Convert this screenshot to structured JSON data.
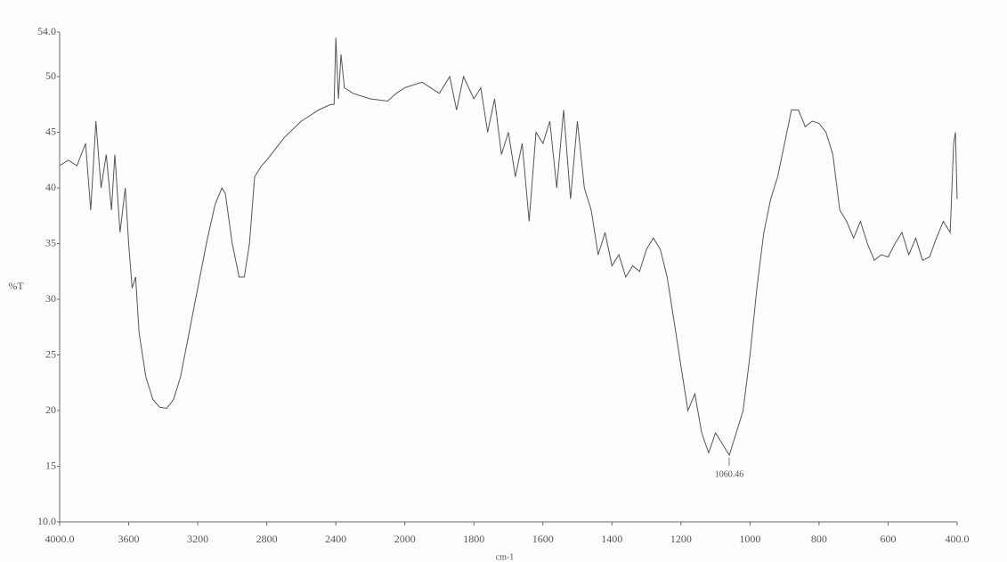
{
  "chart_data": {
    "type": "line",
    "ylabel": "%T",
    "xlabel": "cm-1",
    "xlim": [
      4000,
      400
    ],
    "xticks": [
      {
        "value": 4000,
        "label": "4000.0"
      },
      3600,
      3200,
      2800,
      2400,
      2000,
      1800,
      1600,
      1400,
      1200,
      1000,
      800,
      600,
      {
        "value": 400,
        "label": "400.0"
      }
    ],
    "ylim": [
      10,
      54
    ],
    "yticks": [
      {
        "value": 10,
        "label": "10.0"
      },
      15,
      20,
      25,
      30,
      35,
      40,
      45,
      50,
      {
        "value": 54,
        "label": "54.0"
      }
    ],
    "annotations": [
      {
        "label": "1060.46",
        "x": 1060.46,
        "y": 16
      }
    ],
    "series": [
      {
        "color": "#555555",
        "x": [
          4000,
          3950,
          3900,
          3850,
          3820,
          3790,
          3760,
          3730,
          3700,
          3680,
          3650,
          3620,
          3600,
          3580,
          3560,
          3540,
          3520,
          3500,
          3460,
          3420,
          3380,
          3340,
          3300,
          3250,
          3200,
          3150,
          3100,
          3060,
          3040,
          3000,
          2960,
          2930,
          2900,
          2870,
          2830,
          2800,
          2700,
          2600,
          2500,
          2430,
          2410,
          2400,
          2385,
          2370,
          2350,
          2300,
          2200,
          2100,
          2050,
          2000,
          1950,
          1900,
          1870,
          1850,
          1830,
          1800,
          1780,
          1760,
          1740,
          1720,
          1700,
          1680,
          1660,
          1640,
          1620,
          1600,
          1580,
          1560,
          1540,
          1520,
          1500,
          1480,
          1460,
          1440,
          1420,
          1400,
          1380,
          1360,
          1340,
          1320,
          1300,
          1280,
          1260,
          1240,
          1220,
          1200,
          1180,
          1160,
          1140,
          1120,
          1100,
          1080,
          1060,
          1040,
          1020,
          1000,
          980,
          960,
          940,
          920,
          900,
          880,
          860,
          840,
          820,
          800,
          780,
          760,
          740,
          720,
          700,
          680,
          660,
          640,
          620,
          600,
          580,
          560,
          540,
          520,
          500,
          480,
          460,
          440,
          420,
          410,
          405,
          400
        ],
        "values": [
          42,
          42.5,
          42,
          44,
          38,
          46,
          40,
          43,
          38,
          43,
          36,
          40,
          35,
          31,
          32,
          27,
          25,
          23,
          21,
          20.3,
          20.2,
          21,
          23,
          27,
          31,
          35,
          38.5,
          40,
          39.5,
          35,
          32,
          32,
          35,
          41,
          42,
          42.5,
          44.5,
          46,
          47,
          47.5,
          47.5,
          53.5,
          48,
          52,
          49,
          48.5,
          48,
          47.8,
          48.5,
          49,
          49.5,
          48.5,
          50,
          47,
          50,
          48,
          49,
          45,
          48,
          43,
          45,
          41,
          44,
          37,
          45,
          44,
          46,
          40,
          47,
          39,
          46,
          40,
          38,
          34,
          36,
          33,
          34,
          32,
          33,
          32.5,
          34.5,
          35.5,
          34.5,
          32,
          28,
          24,
          20,
          21.5,
          18,
          16.2,
          18,
          17,
          16,
          18,
          20,
          25,
          31,
          36,
          39,
          41,
          44,
          47,
          47,
          45.5,
          46,
          45.8,
          45,
          43,
          38,
          37,
          35.5,
          37,
          35,
          33.5,
          34,
          33.8,
          35,
          36,
          34,
          35.5,
          33.5,
          33.8,
          35.5,
          37,
          36,
          44,
          45,
          39
        ]
      }
    ]
  }
}
